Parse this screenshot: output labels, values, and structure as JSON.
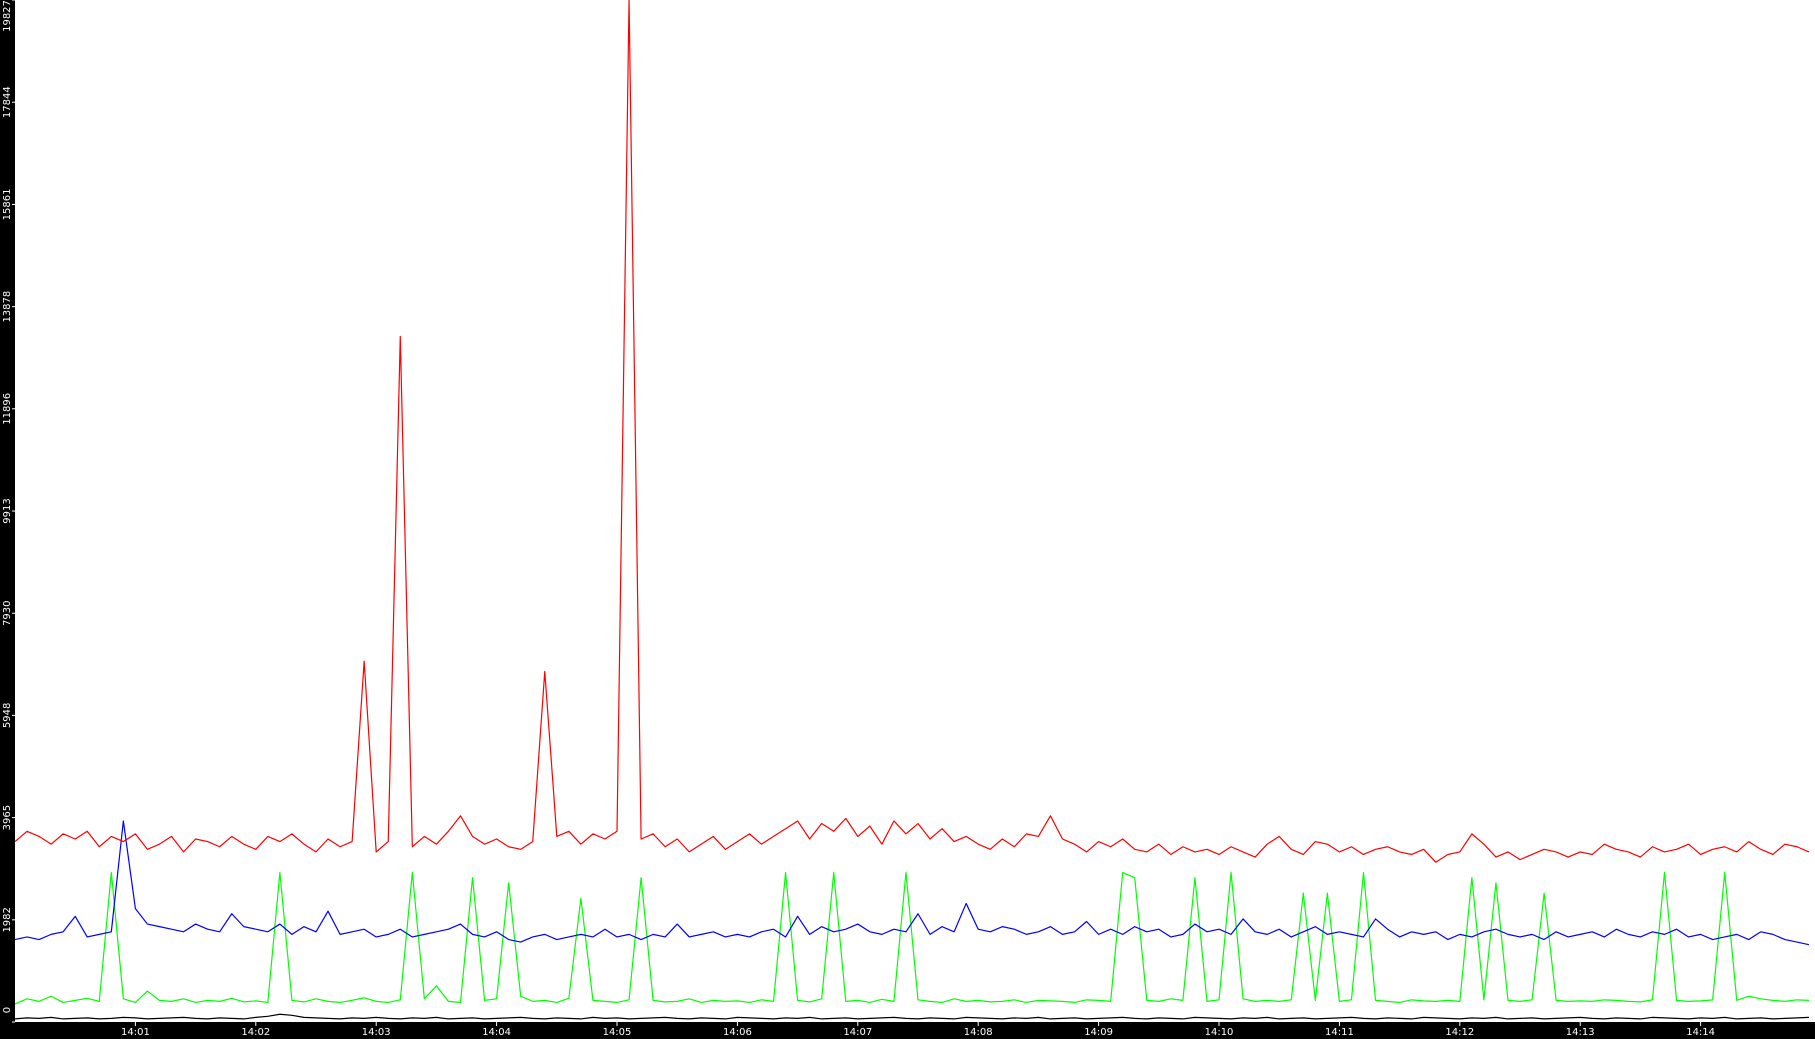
{
  "chart_data": {
    "type": "line",
    "xlim": [
      0,
      14.95
    ],
    "xticks": [
      {
        "value": 1,
        "label": "14:01"
      },
      {
        "value": 2,
        "label": "14:02"
      },
      {
        "value": 3,
        "label": "14:03"
      },
      {
        "value": 4,
        "label": "14:04"
      },
      {
        "value": 5,
        "label": "14:05"
      },
      {
        "value": 6,
        "label": "14:06"
      },
      {
        "value": 7,
        "label": "14:07"
      },
      {
        "value": 8,
        "label": "14:08"
      },
      {
        "value": 9,
        "label": "14:09"
      },
      {
        "value": 10,
        "label": "14:10"
      },
      {
        "value": 11,
        "label": "14:11"
      },
      {
        "value": 12,
        "label": "14:12"
      },
      {
        "value": 13,
        "label": "14:13"
      },
      {
        "value": 14,
        "label": "14:14"
      }
    ],
    "ylim": [
      0,
      19827
    ],
    "yticks": [
      0,
      1982,
      3965,
      5948,
      7930,
      9913,
      11896,
      13878,
      15861,
      17844,
      19827
    ],
    "x": [
      0,
      0.1,
      0.2,
      0.3,
      0.4,
      0.5,
      0.6,
      0.7,
      0.8,
      0.9,
      1,
      1.1,
      1.2,
      1.3,
      1.4,
      1.5,
      1.6,
      1.7,
      1.8,
      1.9,
      2,
      2.1,
      2.2,
      2.3,
      2.4,
      2.5,
      2.6,
      2.7,
      2.8,
      2.9,
      3,
      3.1,
      3.2,
      3.3,
      3.4,
      3.5,
      3.6,
      3.7,
      3.8,
      3.9,
      4,
      4.1,
      4.2,
      4.3,
      4.4,
      4.5,
      4.6,
      4.7,
      4.8,
      4.9,
      5,
      5.1,
      5.2,
      5.3,
      5.4,
      5.5,
      5.6,
      5.7,
      5.8,
      5.9,
      6,
      6.1,
      6.2,
      6.3,
      6.4,
      6.5,
      6.6,
      6.7,
      6.8,
      6.9,
      7,
      7.1,
      7.2,
      7.3,
      7.4,
      7.5,
      7.6,
      7.7,
      7.8,
      7.9,
      8,
      8.1,
      8.2,
      8.3,
      8.4,
      8.5,
      8.6,
      8.7,
      8.8,
      8.9,
      9,
      9.1,
      9.2,
      9.3,
      9.4,
      9.5,
      9.6,
      9.7,
      9.8,
      9.9,
      10,
      10.1,
      10.2,
      10.3,
      10.4,
      10.5,
      10.6,
      10.7,
      10.8,
      10.9,
      11,
      11.1,
      11.2,
      11.3,
      11.4,
      11.5,
      11.6,
      11.7,
      11.8,
      11.9,
      12,
      12.1,
      12.2,
      12.3,
      12.4,
      12.5,
      12.6,
      12.7,
      12.8,
      12.9,
      13,
      13.1,
      13.2,
      13.3,
      13.4,
      13.5,
      13.6,
      13.7,
      13.8,
      13.9,
      14,
      14.1,
      14.2,
      14.3,
      14.4,
      14.5,
      14.6,
      14.7,
      14.8,
      14.9
    ],
    "series": [
      {
        "color": "#ff0000",
        "values": [
          3500,
          3700,
          3600,
          3450,
          3650,
          3550,
          3700,
          3400,
          3600,
          3500,
          3650,
          3350,
          3450,
          3600,
          3300,
          3550,
          3500,
          3400,
          3600,
          3450,
          3350,
          3600,
          3500,
          3650,
          3450,
          3300,
          3550,
          3400,
          3500,
          7000,
          3300,
          3500,
          13300,
          3400,
          3600,
          3450,
          3700,
          4000,
          3600,
          3450,
          3550,
          3400,
          3350,
          3500,
          6800,
          3600,
          3700,
          3450,
          3650,
          3550,
          3700,
          19827,
          3550,
          3650,
          3400,
          3550,
          3300,
          3450,
          3600,
          3350,
          3500,
          3650,
          3450,
          3600,
          3750,
          3900,
          3550,
          3850,
          3700,
          3950,
          3600,
          3800,
          3450,
          3900,
          3650,
          3850,
          3550,
          3750,
          3500,
          3600,
          3450,
          3350,
          3550,
          3400,
          3650,
          3600,
          4000,
          3550,
          3450,
          3300,
          3500,
          3400,
          3550,
          3350,
          3300,
          3450,
          3250,
          3400,
          3300,
          3350,
          3250,
          3400,
          3300,
          3200,
          3450,
          3600,
          3350,
          3250,
          3500,
          3450,
          3300,
          3400,
          3250,
          3350,
          3400,
          3300,
          3250,
          3350,
          3100,
          3250,
          3300,
          3650,
          3450,
          3200,
          3300,
          3150,
          3250,
          3350,
          3300,
          3200,
          3300,
          3250,
          3450,
          3350,
          3300,
          3200,
          3400,
          3300,
          3350,
          3450,
          3250,
          3350,
          3400,
          3300,
          3500,
          3350,
          3250,
          3450,
          3400,
          3300
        ]
      },
      {
        "color": "#0000ff",
        "values": [
          1600,
          1650,
          1600,
          1700,
          1750,
          2050,
          1650,
          1700,
          1750,
          3900,
          2200,
          1900,
          1850,
          1800,
          1750,
          1900,
          1800,
          1750,
          2100,
          1850,
          1800,
          1750,
          1900,
          1700,
          1850,
          1750,
          2150,
          1700,
          1750,
          1800,
          1650,
          1700,
          1800,
          1650,
          1700,
          1750,
          1800,
          1900,
          1700,
          1650,
          1750,
          1600,
          1550,
          1650,
          1700,
          1600,
          1650,
          1700,
          1650,
          1800,
          1650,
          1700,
          1600,
          1700,
          1650,
          1900,
          1650,
          1700,
          1750,
          1650,
          1700,
          1650,
          1750,
          1800,
          1650,
          2050,
          1700,
          1850,
          1750,
          1800,
          1900,
          1750,
          1700,
          1800,
          1750,
          2100,
          1700,
          1850,
          1750,
          2300,
          1800,
          1750,
          1850,
          1800,
          1700,
          1750,
          1850,
          1700,
          1750,
          1950,
          1700,
          1800,
          1700,
          1850,
          1750,
          1800,
          1650,
          1700,
          1900,
          1750,
          1800,
          1700,
          2000,
          1750,
          1700,
          1800,
          1650,
          1750,
          1850,
          1700,
          1750,
          1700,
          1650,
          2000,
          1800,
          1650,
          1750,
          1700,
          1750,
          1600,
          1700,
          1650,
          1750,
          1800,
          1700,
          1650,
          1700,
          1600,
          1750,
          1650,
          1700,
          1750,
          1650,
          1800,
          1700,
          1650,
          1750,
          1700,
          1800,
          1650,
          1700,
          1600,
          1650,
          1700,
          1600,
          1750,
          1700,
          1600,
          1550,
          1500
        ]
      },
      {
        "color": "#00ff00",
        "values": [
          350,
          450,
          400,
          500,
          380,
          420,
          460,
          400,
          2900,
          450,
          380,
          600,
          420,
          400,
          450,
          380,
          420,
          400,
          460,
          390,
          410,
          380,
          2900,
          420,
          390,
          450,
          400,
          380,
          420,
          470,
          400,
          380,
          430,
          2900,
          450,
          700,
          400,
          380,
          2800,
          420,
          450,
          2700,
          500,
          400,
          420,
          380,
          460,
          2400,
          420,
          400,
          380,
          430,
          2800,
          420,
          390,
          400,
          450,
          380,
          420,
          400,
          410,
          380,
          430,
          400,
          2900,
          420,
          390,
          450,
          2900,
          400,
          420,
          380,
          440,
          400,
          2900,
          430,
          400,
          380,
          450,
          400,
          420,
          390,
          400,
          430,
          380,
          420,
          410,
          400,
          380,
          430,
          420,
          400,
          2900,
          2800,
          420,
          400,
          450,
          420,
          2800,
          400,
          430,
          2900,
          450,
          400,
          420,
          400,
          430,
          2500,
          420,
          2500,
          400,
          430,
          2900,
          420,
          400,
          380,
          430,
          410,
          400,
          420,
          400,
          2800,
          430,
          2700,
          420,
          400,
          430,
          2500,
          420,
          400,
          410,
          400,
          430,
          420,
          400,
          390,
          430,
          2900,
          420,
          400,
          410,
          430,
          2900,
          420,
          500,
          450,
          420,
          400,
          430,
          420
        ]
      },
      {
        "color": "#000000",
        "values": [
          60,
          80,
          70,
          90,
          60,
          70,
          80,
          60,
          70,
          90,
          80,
          60,
          70,
          80,
          90,
          70,
          60,
          80,
          70,
          60,
          90,
          110,
          150,
          130,
          90,
          80,
          70,
          60,
          80,
          70,
          90,
          70,
          60,
          80,
          70,
          90,
          60,
          70,
          80,
          60,
          70,
          80,
          90,
          70,
          60,
          80,
          70,
          60,
          90,
          70,
          80,
          60,
          70,
          80,
          90,
          70,
          60,
          80,
          70,
          60,
          90,
          80,
          70,
          60,
          80,
          70,
          90,
          60,
          70,
          80,
          60,
          70,
          80,
          90,
          70,
          60,
          80,
          70,
          60,
          90,
          80,
          70,
          60,
          80,
          70,
          90,
          60,
          70,
          80,
          60,
          70,
          80,
          90,
          70,
          60,
          80,
          70,
          60,
          90,
          80,
          70,
          60,
          80,
          70,
          90,
          60,
          70,
          80,
          60,
          70,
          80,
          90,
          70,
          60,
          80,
          70,
          60,
          90,
          80,
          70,
          60,
          80,
          70,
          90,
          60,
          70,
          80,
          60,
          70,
          80,
          90,
          70,
          60,
          80,
          70,
          60,
          90,
          80,
          70,
          60,
          80,
          70,
          90,
          60,
          70,
          80,
          60,
          70,
          80,
          90
        ]
      }
    ]
  }
}
